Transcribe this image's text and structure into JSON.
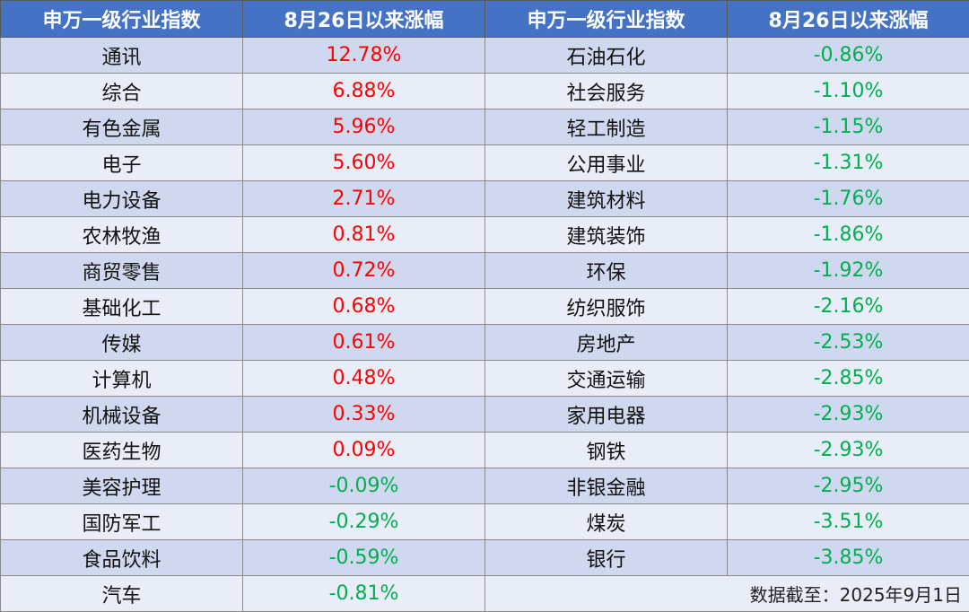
{
  "header": {
    "col1": "申万一级行业指数",
    "col2": "8月26日以来涨幅",
    "col3": "申万一级行业指数",
    "col4": "8月26日以来涨幅"
  },
  "colors": {
    "header_bg": "#4472c4",
    "row_odd": "#cfd8ee",
    "row_even": "#e9edf7",
    "positive": "#ff0000",
    "negative": "#00b050"
  },
  "rows": [
    {
      "left_name": "通讯",
      "left_value": "12.78%",
      "right_name": "石油石化",
      "right_value": "-0.86%"
    },
    {
      "left_name": "综合",
      "left_value": "6.88%",
      "right_name": "社会服务",
      "right_value": "-1.10%"
    },
    {
      "left_name": "有色金属",
      "left_value": "5.96%",
      "right_name": "轻工制造",
      "right_value": "-1.15%"
    },
    {
      "left_name": "电子",
      "left_value": "5.60%",
      "right_name": "公用事业",
      "right_value": "-1.31%"
    },
    {
      "left_name": "电力设备",
      "left_value": "2.71%",
      "right_name": "建筑材料",
      "right_value": "-1.76%"
    },
    {
      "left_name": "农林牧渔",
      "left_value": "0.81%",
      "right_name": "建筑装饰",
      "right_value": "-1.86%"
    },
    {
      "left_name": "商贸零售",
      "left_value": "0.72%",
      "right_name": "环保",
      "right_value": "-1.92%"
    },
    {
      "left_name": "基础化工",
      "left_value": "0.68%",
      "right_name": "纺织服饰",
      "right_value": "-2.16%"
    },
    {
      "left_name": "传媒",
      "left_value": "0.61%",
      "right_name": "房地产",
      "right_value": "-2.53%"
    },
    {
      "left_name": "计算机",
      "left_value": "0.48%",
      "right_name": "交通运输",
      "right_value": "-2.85%"
    },
    {
      "left_name": "机械设备",
      "left_value": "0.33%",
      "right_name": "家用电器",
      "right_value": "-2.93%"
    },
    {
      "left_name": "医药生物",
      "left_value": "0.09%",
      "right_name": "钢铁",
      "right_value": "-2.93%"
    },
    {
      "left_name": "美容护理",
      "left_value": "-0.09%",
      "right_name": "非银金融",
      "right_value": "-2.95%"
    },
    {
      "left_name": "国防军工",
      "left_value": "-0.29%",
      "right_name": "煤炭",
      "right_value": "-3.51%"
    },
    {
      "left_name": "食品饮料",
      "left_value": "-0.59%",
      "right_name": "银行",
      "right_value": "-3.85%"
    }
  ],
  "last_row": {
    "left_name": "汽车",
    "left_value": "-0.81%",
    "note": "数据截至：2025年9月1日"
  }
}
